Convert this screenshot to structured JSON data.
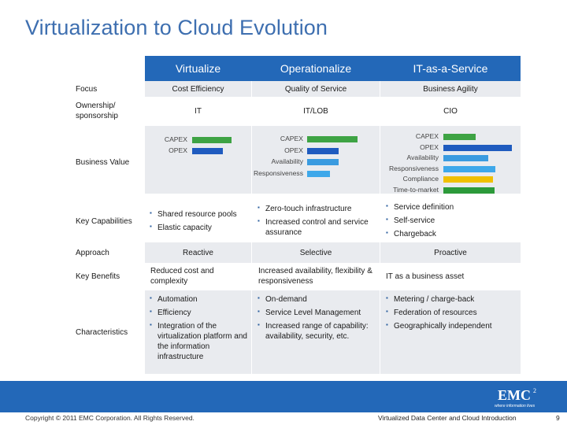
{
  "title": "Virtualization to Cloud Evolution",
  "columns": [
    "Virtualize",
    "Operationalize",
    "IT-as-a-Service"
  ],
  "rows": {
    "focus": {
      "label": "Focus",
      "values": [
        "Cost Efficiency",
        "Quality of Service",
        "Business Agility"
      ]
    },
    "ownership": {
      "label": "Ownership/ sponsorship",
      "values": [
        "IT",
        "IT/LOB",
        "CIO"
      ]
    },
    "business_value": {
      "label": "Business Value"
    },
    "key_capabilities": {
      "label": "Key Capabilities",
      "virtualize": [
        "Shared resource pools",
        "Elastic capacity"
      ],
      "operationalize": [
        "Zero-touch infrastructure",
        "Increased control and service assurance"
      ],
      "itaas": [
        "Service definition",
        "Self-service",
        "Chargeback"
      ]
    },
    "approach": {
      "label": "Approach",
      "values": [
        "Reactive",
        "Selective",
        "Proactive"
      ]
    },
    "key_benefits": {
      "label": "Key Benefits",
      "values": [
        "Reduced cost and complexity",
        "Increased availability, flexibility & responsiveness",
        "IT as a business asset"
      ]
    },
    "characteristics": {
      "label": "Characteristics",
      "virtualize": [
        "Automation",
        "Efficiency",
        "Integration of the virtualization platform and the information infrastructure"
      ],
      "operationalize": [
        "On-demand",
        "Service Level Management",
        "Increased range of capability: availability, security, etc."
      ],
      "itaas": [
        "Metering / charge-back",
        "Federation of resources",
        "Geographically independent"
      ]
    }
  },
  "chart_data": [
    {
      "type": "bar",
      "title": "Virtualize",
      "categories": [
        "CAPEX",
        "OPEX"
      ],
      "values": [
        1.0,
        0.77
      ]
    },
    {
      "type": "bar",
      "title": "Operationalize",
      "categories": [
        "CAPEX",
        "OPEX",
        "Availability",
        "Responsiveness"
      ],
      "values": [
        1.0,
        0.62,
        0.62,
        0.46
      ]
    },
    {
      "type": "bar",
      "title": "IT-as-a-Service",
      "categories": [
        "CAPEX",
        "OPEX",
        "Availability",
        "Responsiveness",
        "Compliance",
        "Time-to-market"
      ],
      "values": [
        0.47,
        1.0,
        0.66,
        0.76,
        0.72,
        0.75
      ]
    }
  ],
  "bar_colors": [
    "#3ea344",
    "#1f5bbf",
    "#3a9be0",
    "#3ea8ea",
    "#f0c000",
    "#2c9a3a"
  ],
  "colors": {
    "header": "#2368b8",
    "cell_bg": "#e9ebef",
    "title": "#3e6fb0"
  },
  "footer": {
    "copyright": "Copyright © 2011 EMC Corporation. All Rights Reserved.",
    "right_text": "Virtualized Data Center and Cloud Introduction",
    "page": "9",
    "logo_text": "EMC",
    "logo_sup": "2",
    "logo_tagline": "where information lives"
  }
}
